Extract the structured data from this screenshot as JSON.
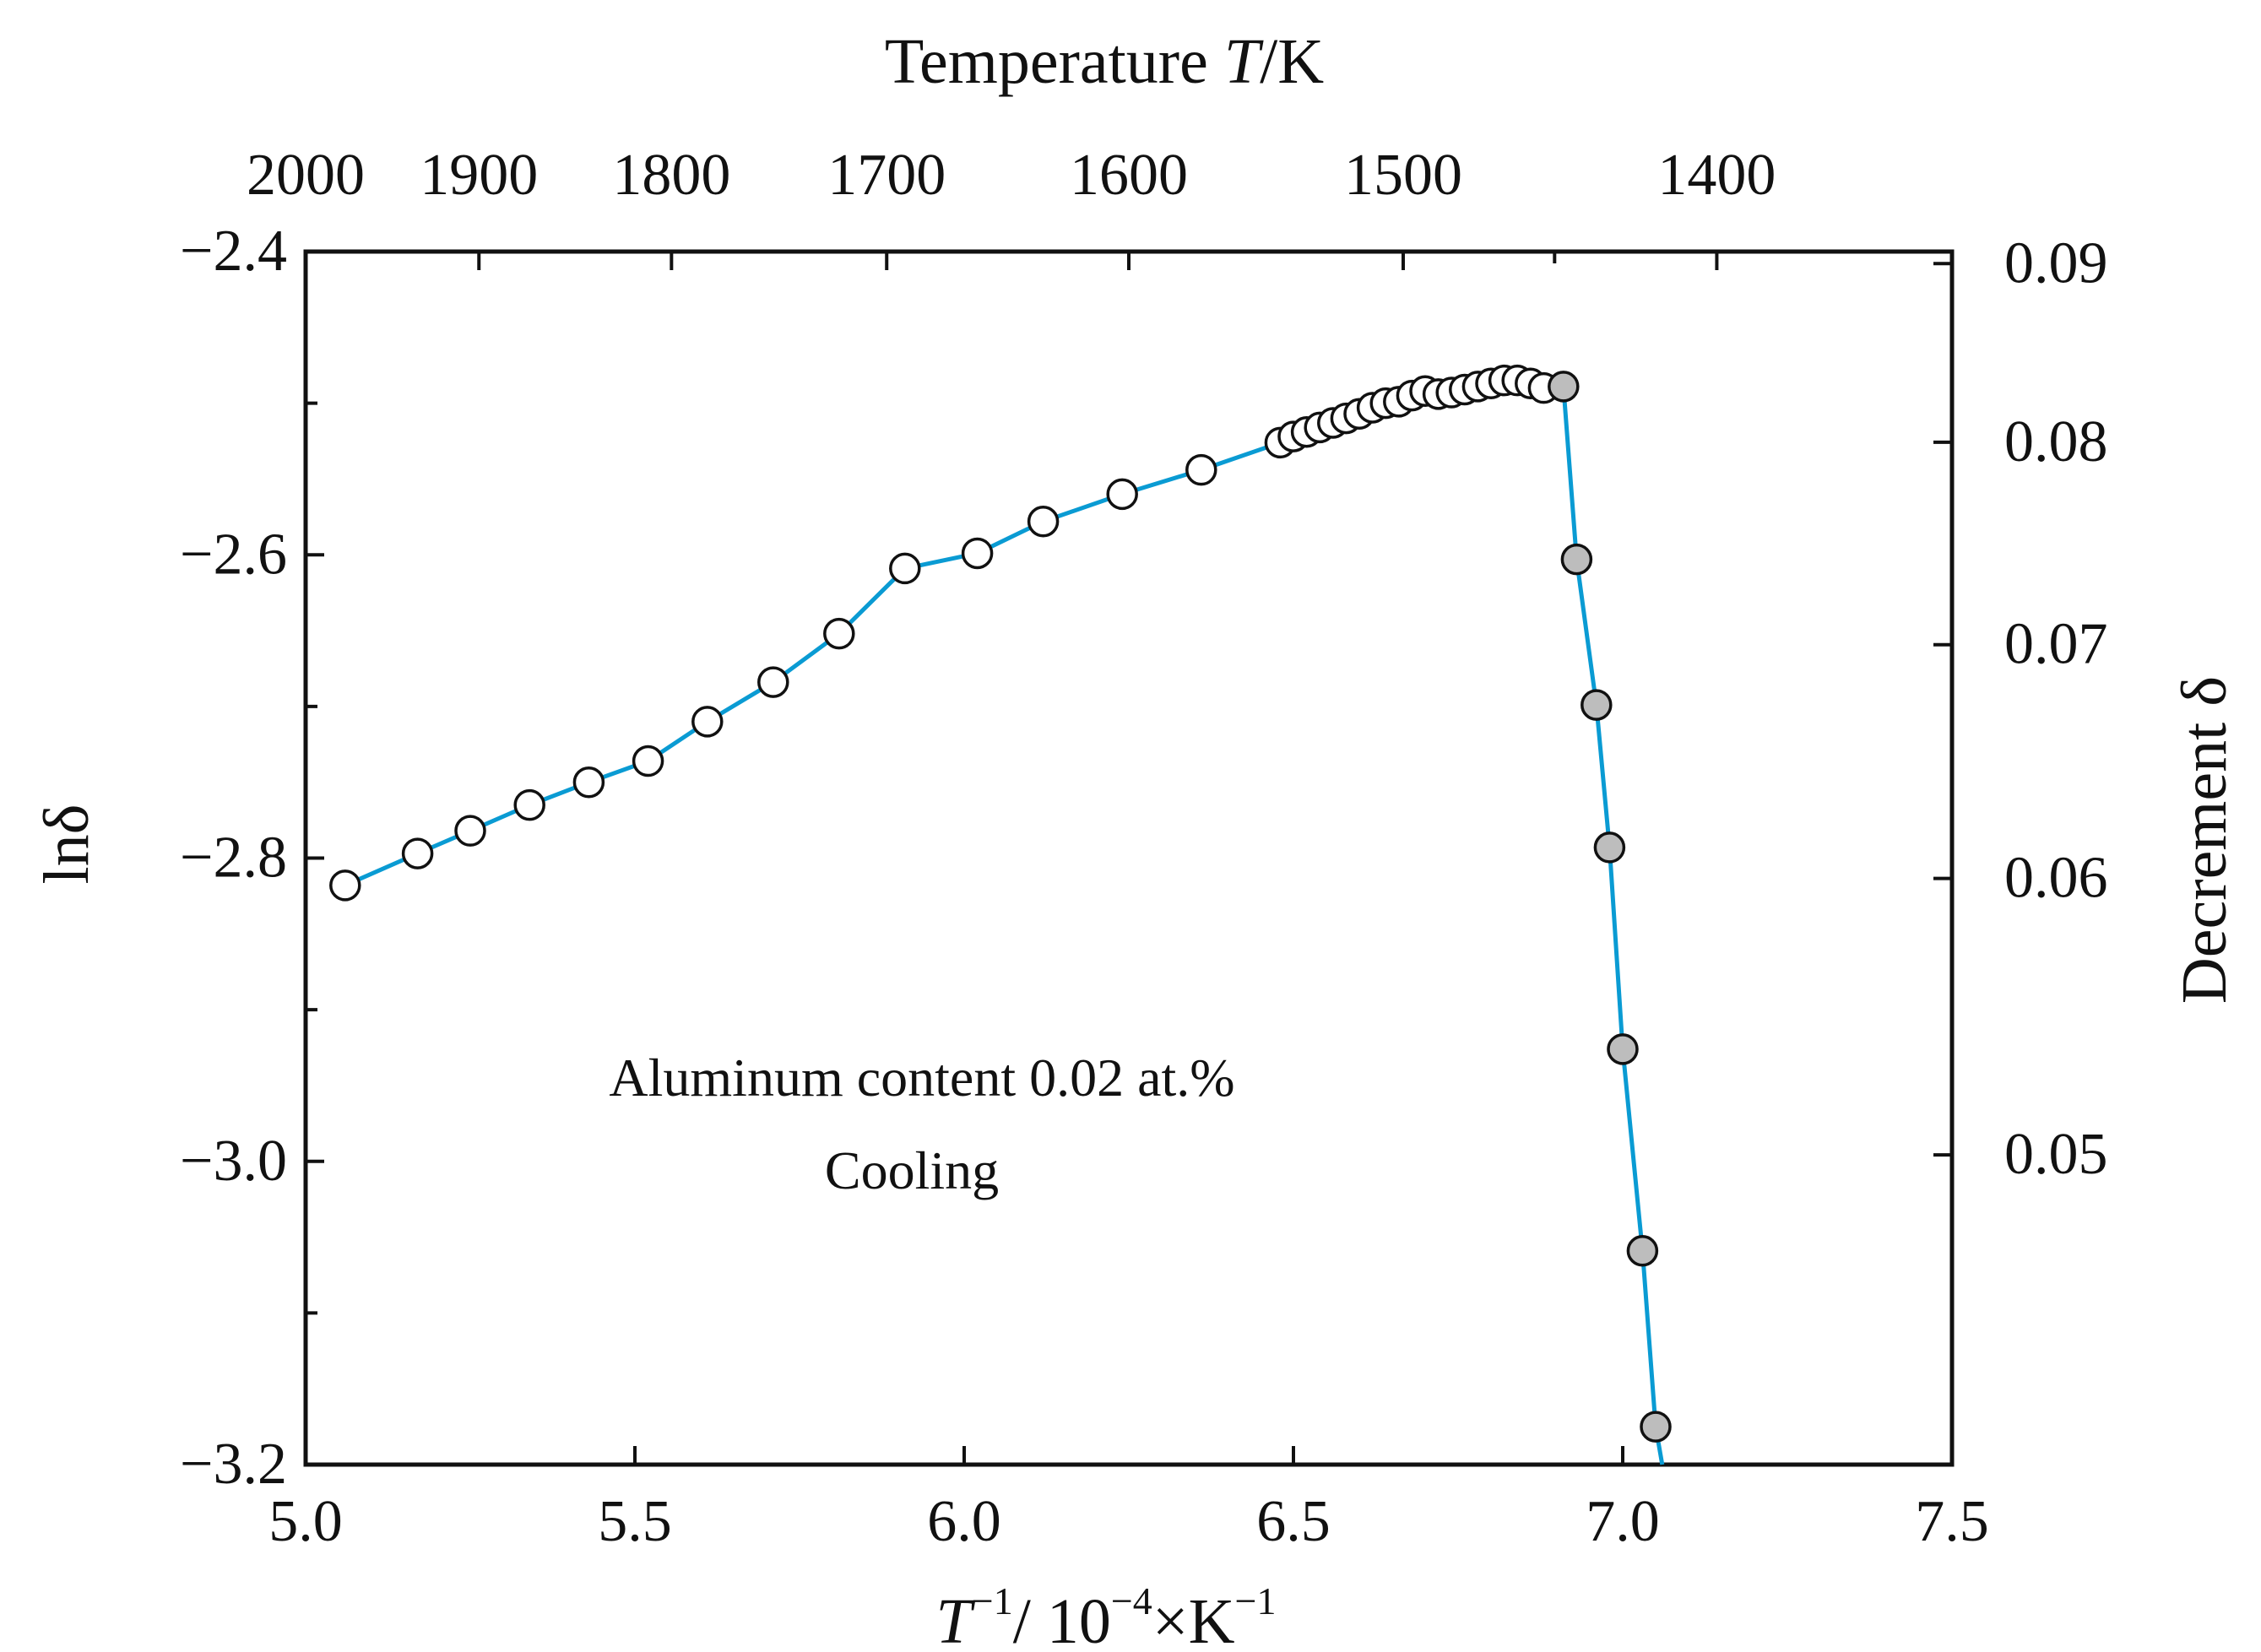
{
  "chart_data": {
    "type": "scatter",
    "title": "",
    "xlabel": "T⁻¹/ 10⁻⁴×K⁻¹",
    "xlabel_parts": {
      "t": "T",
      "exp1": "−1",
      "mid": "/ 10",
      "exp2": "−4",
      "unit": "×K",
      "exp3": "−1"
    },
    "ylabel": "lnδ",
    "top_xlabel": "Temperature T/K",
    "top_xlabel_parts": {
      "pre": "Temperature ",
      "t": "T",
      "post": "/K"
    },
    "right_ylabel": "Decrement δ",
    "xlim": [
      5.0,
      7.5
    ],
    "ylim": [
      -3.2,
      -2.4
    ],
    "x_ticks": [
      5.0,
      5.5,
      6.0,
      6.5,
      7.0,
      7.5
    ],
    "x_tick_labels": [
      "5.0",
      "5.5",
      "6.0",
      "6.5",
      "7.0",
      "7.5"
    ],
    "y_ticks": [
      -2.4,
      -2.6,
      -2.8,
      -3.0,
      -3.2
    ],
    "y_tick_labels": [
      "−2.4",
      "−2.6",
      "−2.8",
      "−3.0",
      "−3.2"
    ],
    "y_minor_ticks": [
      -2.5,
      -2.7,
      -2.9,
      -3.1
    ],
    "top_ticks": [
      {
        "T": 2000,
        "label": "2000"
      },
      {
        "T": 1900,
        "label": "1900"
      },
      {
        "T": 1800,
        "label": "1800"
      },
      {
        "T": 1700,
        "label": "1700"
      },
      {
        "T": 1600,
        "label": "1600"
      },
      {
        "T": 1500,
        "label": "1500"
      },
      {
        "T": 1400,
        "label": "1400"
      }
    ],
    "top_minor_ticks": [
      1450
    ],
    "right_ticks": [
      {
        "value": 0.09,
        "label": "0.09"
      },
      {
        "value": 0.08,
        "label": "0.08"
      },
      {
        "value": 0.07,
        "label": "0.07"
      },
      {
        "value": 0.06,
        "label": "0.06"
      },
      {
        "value": 0.05,
        "label": "0.05"
      }
    ],
    "annotations": [
      "Aluminum content 0.02 at.%",
      "Cooling"
    ],
    "series": [
      {
        "name": "open",
        "color": "#ffffff",
        "points": [
          [
            5.06,
            -2.818
          ],
          [
            5.17,
            -2.797
          ],
          [
            5.25,
            -2.782
          ],
          [
            5.34,
            -2.765
          ],
          [
            5.43,
            -2.75
          ],
          [
            5.52,
            -2.736
          ],
          [
            5.61,
            -2.71
          ],
          [
            5.71,
            -2.684
          ],
          [
            5.81,
            -2.652
          ],
          [
            5.91,
            -2.609
          ],
          [
            6.02,
            -2.599
          ],
          [
            6.12,
            -2.578
          ],
          [
            6.24,
            -2.56
          ],
          [
            6.36,
            -2.544
          ],
          [
            6.48,
            -2.526
          ],
          [
            6.5,
            -2.522
          ],
          [
            6.52,
            -2.519
          ],
          [
            6.54,
            -2.516
          ],
          [
            6.56,
            -2.513
          ],
          [
            6.58,
            -2.51
          ],
          [
            6.6,
            -2.507
          ],
          [
            6.62,
            -2.503
          ],
          [
            6.64,
            -2.5
          ],
          [
            6.66,
            -2.499
          ],
          [
            6.68,
            -2.495
          ],
          [
            6.7,
            -2.492
          ],
          [
            6.72,
            -2.494
          ],
          [
            6.74,
            -2.493
          ],
          [
            6.76,
            -2.491
          ],
          [
            6.78,
            -2.489
          ],
          [
            6.8,
            -2.487
          ],
          [
            6.82,
            -2.485
          ],
          [
            6.84,
            -2.485
          ],
          [
            6.86,
            -2.487
          ],
          [
            6.88,
            -2.49
          ]
        ]
      },
      {
        "name": "filled",
        "color": "#bdbdbd",
        "points": [
          [
            6.91,
            -2.489
          ],
          [
            6.93,
            -2.603
          ],
          [
            6.96,
            -2.699
          ],
          [
            6.98,
            -2.793
          ],
          [
            7.0,
            -2.926
          ],
          [
            7.03,
            -3.059
          ],
          [
            7.05,
            -3.175
          ]
        ]
      }
    ],
    "line_color": "#0a9bd3",
    "line_end": [
      7.06,
      -3.2
    ]
  }
}
